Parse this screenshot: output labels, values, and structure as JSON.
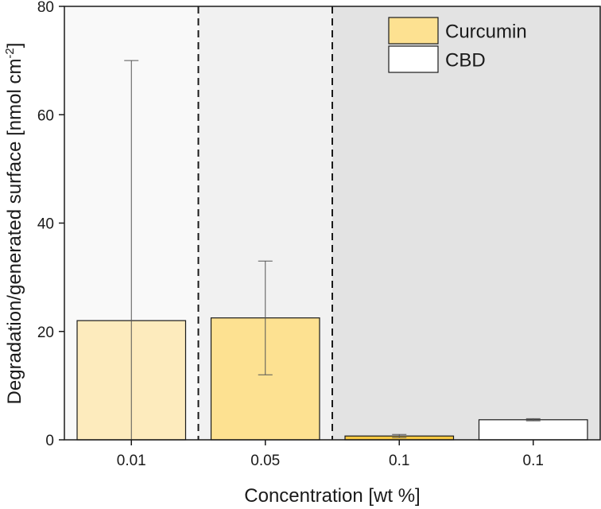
{
  "chart_data": {
    "type": "bar",
    "xlabel": "Concentration [wt %]",
    "ylabel": {
      "main": "Degradation/generated surface [nmol cm",
      "superscript": "-2",
      "close": "]"
    },
    "ylim": [
      0,
      80
    ],
    "yticks": [
      "0",
      "20",
      "40",
      "60",
      "80"
    ],
    "categories": [
      "0.01",
      "0.05",
      "0.1",
      "0.1"
    ],
    "bars": [
      {
        "category": "0.01",
        "series": "Curcumin",
        "value": 22.0,
        "error_low": 0.0,
        "error_high": 70.0,
        "color": "#fdebbd"
      },
      {
        "category": "0.05",
        "series": "Curcumin",
        "value": 22.5,
        "error_low": 12.0,
        "error_high": 33.0,
        "color": "#fde191"
      },
      {
        "category": "0.1",
        "series": "Curcumin",
        "value": 0.7,
        "error_low": 0.4,
        "error_high": 1.0,
        "color": "#f7c842"
      },
      {
        "category": "0.1",
        "series": "CBD",
        "value": 3.7,
        "error_low": 3.5,
        "error_high": 3.9,
        "color": "#ffffff"
      }
    ],
    "background_regions": [
      {
        "from_category": 0,
        "to_category": 0,
        "color": "#f9f9f9"
      },
      {
        "from_category": 1,
        "to_category": 1,
        "color": "#f1f1f1"
      },
      {
        "from_category": 2,
        "to_category": 3,
        "color": "#e3e3e3"
      }
    ],
    "dividers_after_category": [
      0,
      1
    ],
    "legend": {
      "position": "top-right",
      "entries": [
        {
          "label": "Curcumin",
          "color": "#fde191"
        },
        {
          "label": "CBD",
          "color": "#ffffff"
        }
      ]
    },
    "grid": false
  }
}
